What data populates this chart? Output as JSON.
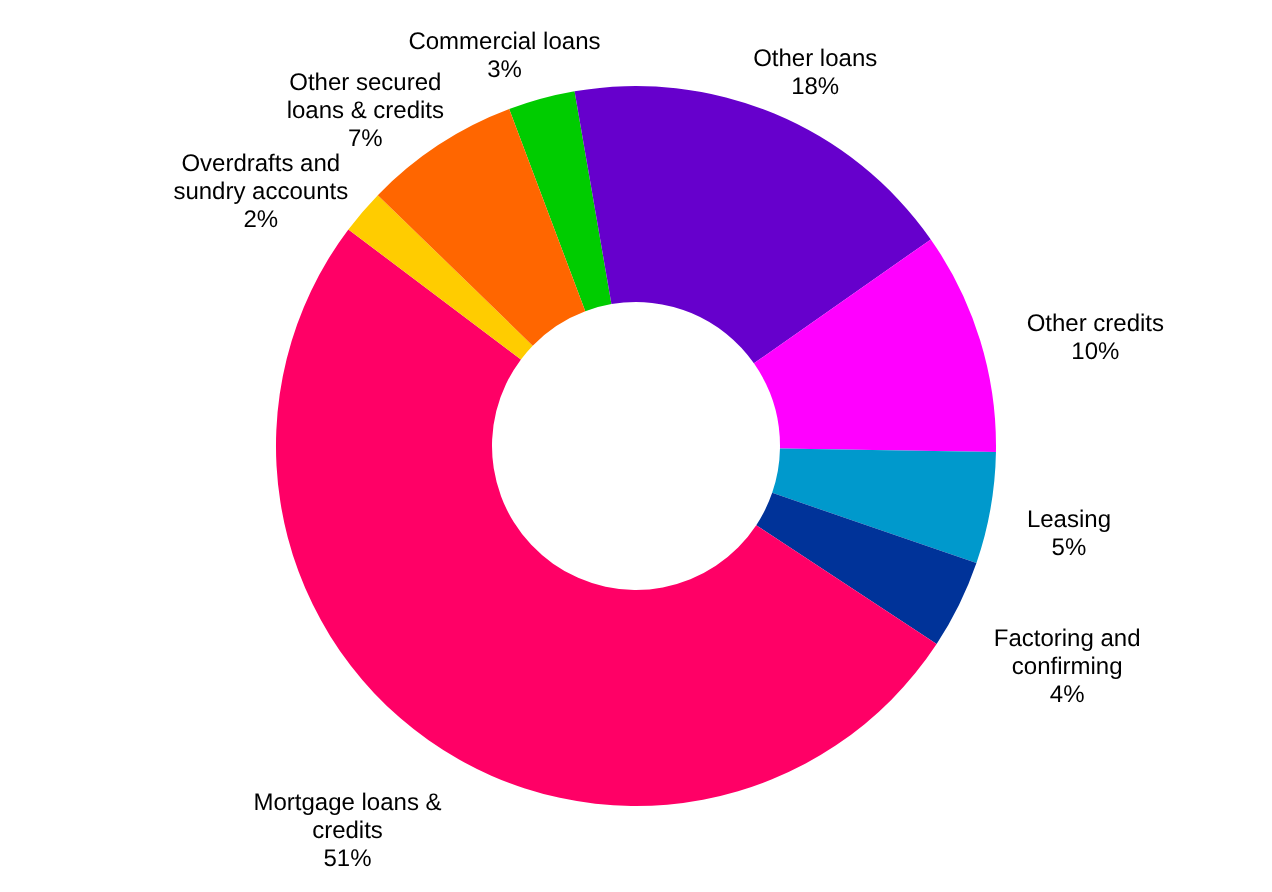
{
  "chart_data": {
    "type": "donut",
    "categories": [
      "Commercial loans",
      "Other loans",
      "Other credits",
      "Leasing",
      "Factoring and confirming",
      "Mortgage loans & credits",
      "Overdrafts and sundry accounts",
      "Other secured loans & credits"
    ],
    "values": [
      3,
      18,
      10,
      5,
      4,
      51,
      2,
      7
    ],
    "value_labels": [
      "3%",
      "18%",
      "10%",
      "5%",
      "4%",
      "51%",
      "2%",
      "7%"
    ],
    "colors": [
      "#00cc00",
      "#6600cc",
      "#ff00ff",
      "#0099cc",
      "#003399",
      "#ff0066",
      "#ffcc00",
      "#ff6600"
    ],
    "legend": false
  }
}
